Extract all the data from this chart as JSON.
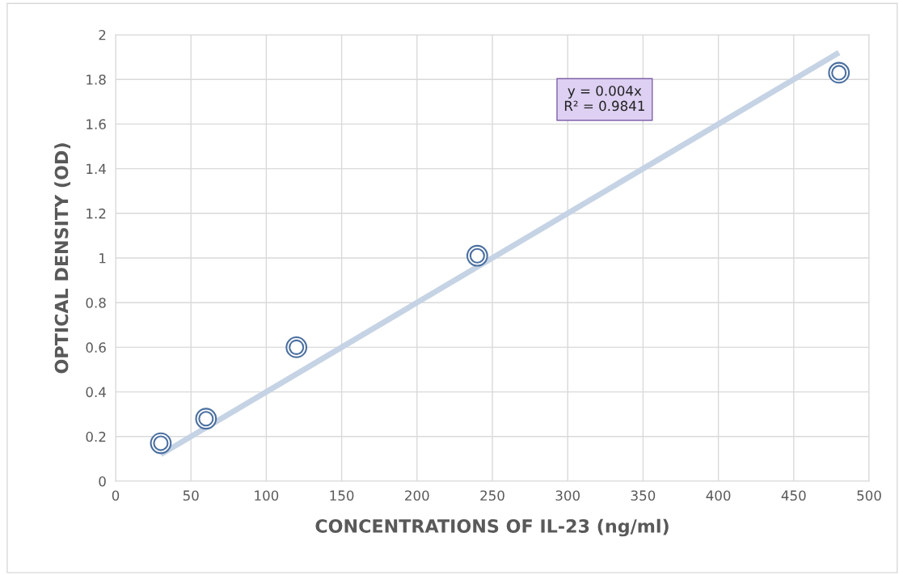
{
  "chart_data": {
    "type": "scatter",
    "xlabel": "CONCENTRATIONS OF IL-23 (ng/ml)",
    "ylabel": "OPTICAL DENSITY (OD)",
    "series": [
      {
        "color": "#4a6fa0",
        "marker": "circle",
        "x": [
          30,
          60,
          120,
          240,
          480
        ],
        "values": [
          0.17,
          0.28,
          0.6,
          1.01,
          1.83
        ]
      },
      {
        "type": "line",
        "color": "#c5d3e5",
        "marker": "none",
        "line_style": "solid",
        "x": [
          30,
          480
        ],
        "values": [
          0.12,
          1.92
        ]
      }
    ],
    "annotations": [
      "y = 0.004x\nR² = 0.9841"
    ],
    "xlim": [
      0,
      500
    ],
    "xticks": [
      0,
      50,
      100,
      150,
      200,
      250,
      300,
      350,
      400,
      450,
      500
    ],
    "ylim": [
      0,
      2
    ],
    "yticks": [
      0,
      0.2,
      0.4,
      0.6,
      0.8,
      1,
      1.2,
      1.4,
      1.6,
      1.8,
      2
    ],
    "grid": true
  }
}
